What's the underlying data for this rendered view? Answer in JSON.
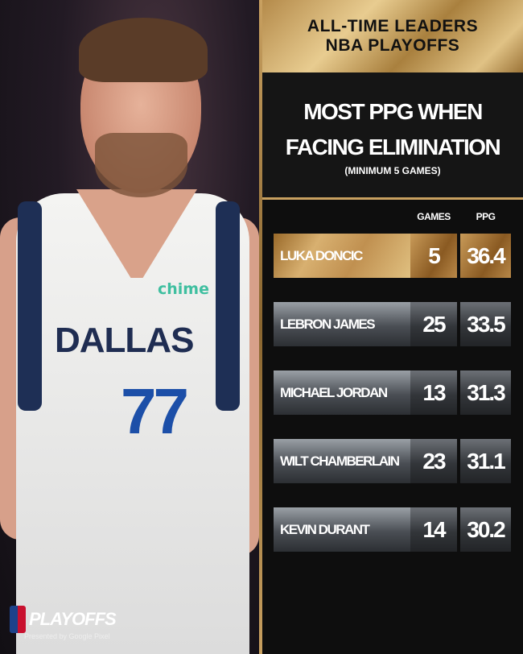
{
  "header": {
    "line1": "ALL-TIME LEADERS",
    "line2": "NBA PLAYOFFS"
  },
  "title": {
    "line1": "MOST PPG WHEN",
    "line2": "FACING ELIMINATION",
    "subtitle": "(MINIMUM 5 GAMES)"
  },
  "columns": {
    "games": "GAMES",
    "ppg": "PPG"
  },
  "rows": [
    {
      "name": "LUKA DONCIC",
      "games": "5",
      "ppg": "36.4",
      "highlight": true
    },
    {
      "name": "LEBRON JAMES",
      "games": "25",
      "ppg": "33.5"
    },
    {
      "name": "MICHAEL JORDAN",
      "games": "13",
      "ppg": "31.3"
    },
    {
      "name": "WILT CHAMBERLAIN",
      "games": "23",
      "ppg": "31.1"
    },
    {
      "name": "KEVIN DURANT",
      "games": "14",
      "ppg": "30.2"
    }
  ],
  "photo": {
    "sponsor": "chime",
    "team": "DALLAS",
    "number": "77"
  },
  "logo": {
    "text": "PLAYOFFS",
    "presented": "Presented by Google Pixel"
  },
  "colors": {
    "gold": "#c8a060",
    "background": "#0e0e0e"
  }
}
